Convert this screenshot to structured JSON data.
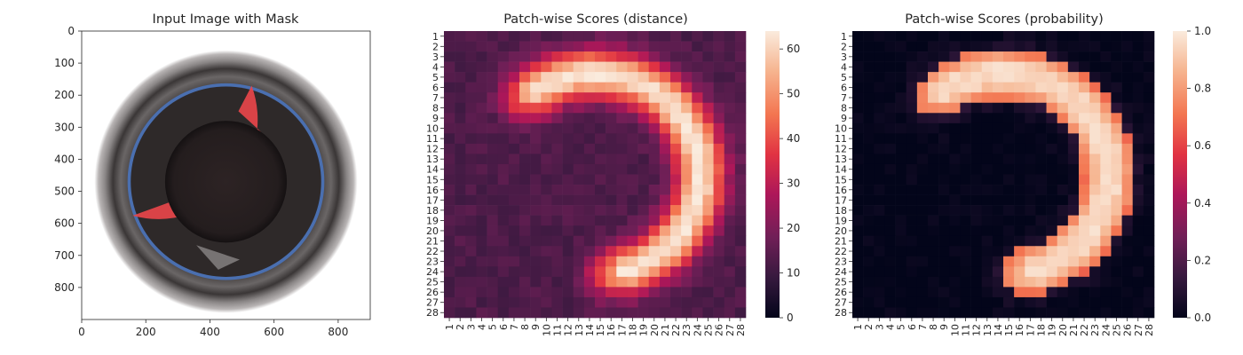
{
  "colormap": [
    "#03051a",
    "#36193e",
    "#701f57",
    "#ad1759",
    "#e13342",
    "#f37651",
    "#f6b48f",
    "#faebdd"
  ],
  "chart_data": [
    {
      "type": "image",
      "title": "Input Image with Mask",
      "xlim": [
        0,
        900
      ],
      "ylim": [
        900,
        0
      ],
      "xticks": [
        0,
        200,
        400,
        600,
        800
      ],
      "yticks": [
        0,
        100,
        200,
        300,
        400,
        500,
        600,
        700,
        800
      ],
      "image": {
        "description": "Top view of a round bottle/can opening: grey-black ring, blue inner rim, dark circular hole, red segmentation mask over a crescent region on the right and bottom",
        "circle_center": [
          450,
          470
        ],
        "outer_radius": 410,
        "blue_rim_radius": 300,
        "hole_radius": 190,
        "mask_color": "#e8454a"
      }
    },
    {
      "type": "heatmap",
      "title": "Patch-wise Scores (distance)",
      "rows": 28,
      "cols": 28,
      "row_labels": [
        "1",
        "2",
        "3",
        "4",
        "5",
        "6",
        "7",
        "8",
        "9",
        "10",
        "11",
        "12",
        "13",
        "14",
        "15",
        "16",
        "17",
        "18",
        "19",
        "20",
        "21",
        "22",
        "23",
        "24",
        "25",
        "26",
        "27",
        "28"
      ],
      "col_labels": [
        "1",
        "2",
        "3",
        "4",
        "5",
        "6",
        "7",
        "8",
        "9",
        "10",
        "11",
        "12",
        "13",
        "14",
        "15",
        "16",
        "17",
        "18",
        "19",
        "20",
        "21",
        "22",
        "23",
        "24",
        "25",
        "26",
        "27",
        "28"
      ],
      "pattern": {
        "shape": "crescent",
        "center": [
          13.5,
          13.5
        ],
        "ring_radius": 9.8,
        "ring_width": 2.3,
        "gap_center_angle_deg": 205,
        "gap_half_width_deg": 55,
        "peak": 63,
        "baseline": 13,
        "noise": 2.5
      },
      "colorbar": {
        "min": 0,
        "max": 64,
        "ticks": [
          0,
          10,
          20,
          30,
          40,
          50,
          60
        ]
      }
    },
    {
      "type": "heatmap",
      "title": "Patch-wise Scores (probability)",
      "rows": 28,
      "cols": 28,
      "row_labels": [
        "1",
        "2",
        "3",
        "4",
        "5",
        "6",
        "7",
        "8",
        "9",
        "10",
        "11",
        "12",
        "13",
        "14",
        "15",
        "16",
        "17",
        "18",
        "19",
        "20",
        "21",
        "22",
        "23",
        "24",
        "25",
        "26",
        "27",
        "28"
      ],
      "col_labels": [
        "1",
        "2",
        "3",
        "4",
        "5",
        "6",
        "7",
        "8",
        "9",
        "10",
        "11",
        "12",
        "13",
        "14",
        "15",
        "16",
        "17",
        "18",
        "19",
        "20",
        "21",
        "22",
        "23",
        "24",
        "25",
        "26",
        "27",
        "28"
      ],
      "pattern": {
        "shape": "crescent",
        "center": [
          13.5,
          13.5
        ],
        "ring_radius": 9.8,
        "ring_width": 2.3,
        "gap_center_angle_deg": 205,
        "gap_half_width_deg": 55,
        "peak": 0.95,
        "baseline": 0.0,
        "noise": 0.03,
        "sharp": true
      },
      "colorbar": {
        "min": 0.0,
        "max": 1.0,
        "ticks": [
          "0.0",
          "0.2",
          "0.4",
          "0.6",
          "0.8",
          "1.0"
        ]
      }
    }
  ]
}
